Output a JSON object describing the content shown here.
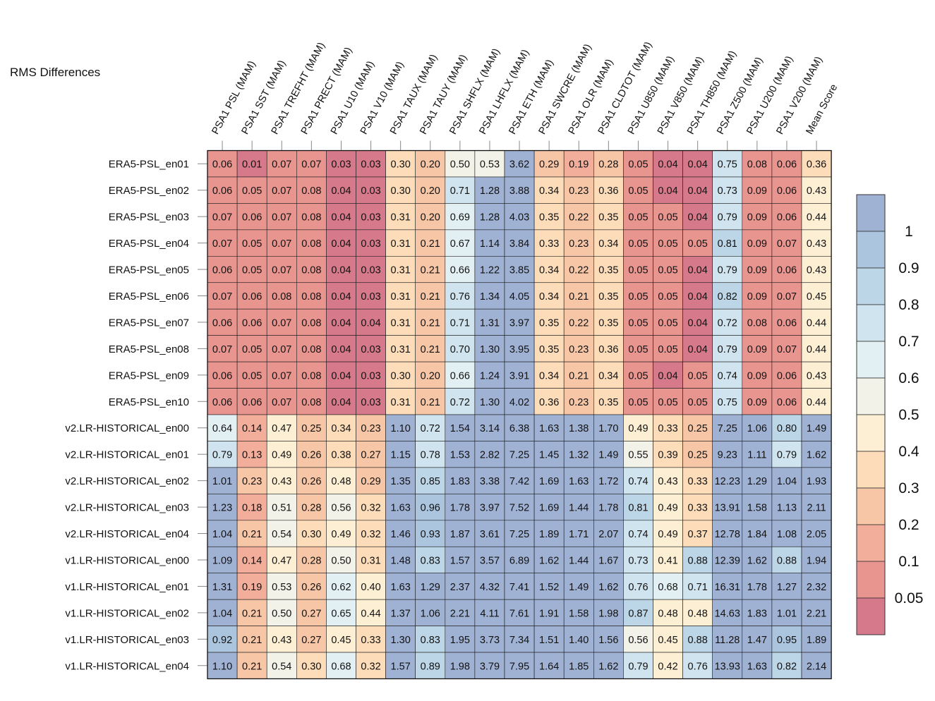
{
  "chart_data": {
    "type": "heatmap",
    "title": "RMS Differences",
    "columns": [
      "PSA1 PSL (MAM)",
      "PSA1 SST (MAM)",
      "PSA1 TREFHT (MAM)",
      "PSA1 PRECT (MAM)",
      "PSA1 U10 (MAM)",
      "PSA1 V10 (MAM)",
      "PSA1 TAUX (MAM)",
      "PSA1 TAUY (MAM)",
      "PSA1 SHFLX (MAM)",
      "PSA1 LHFLX (MAM)",
      "PSA1 ETH (MAM)",
      "PSA1 SWCRE (MAM)",
      "PSA1 OLR (MAM)",
      "PSA1 CLDTOT (MAM)",
      "PSA1 U850 (MAM)",
      "PSA1 V850 (MAM)",
      "PSA1 TH850 (MAM)",
      "PSA1 Z500 (MAM)",
      "PSA1 U200 (MAM)",
      "PSA1 V200 (MAM)",
      "Mean Score"
    ],
    "rows": [
      "ERA5-PSL_en01",
      "ERA5-PSL_en02",
      "ERA5-PSL_en03",
      "ERA5-PSL_en04",
      "ERA5-PSL_en05",
      "ERA5-PSL_en06",
      "ERA5-PSL_en07",
      "ERA5-PSL_en08",
      "ERA5-PSL_en09",
      "ERA5-PSL_en10",
      "v2.LR-HISTORICAL_en00",
      "v2.LR-HISTORICAL_en01",
      "v2.LR-HISTORICAL_en02",
      "v2.LR-HISTORICAL_en03",
      "v2.LR-HISTORICAL_en04",
      "v1.LR-HISTORICAL_en00",
      "v1.LR-HISTORICAL_en01",
      "v1.LR-HISTORICAL_en02",
      "v1.LR-HISTORICAL_en03",
      "v1.LR-HISTORICAL_en04"
    ],
    "values": [
      [
        "0.06",
        "0.01",
        "0.07",
        "0.07",
        "0.03",
        "0.03",
        "0.30",
        "0.20",
        "0.50",
        "0.53",
        "3.62",
        "0.29",
        "0.19",
        "0.28",
        "0.05",
        "0.04",
        "0.04",
        "0.75",
        "0.08",
        "0.06",
        "0.36"
      ],
      [
        "0.06",
        "0.05",
        "0.07",
        "0.08",
        "0.04",
        "0.03",
        "0.30",
        "0.20",
        "0.71",
        "1.28",
        "3.88",
        "0.34",
        "0.23",
        "0.36",
        "0.05",
        "0.04",
        "0.04",
        "0.73",
        "0.09",
        "0.06",
        "0.43"
      ],
      [
        "0.07",
        "0.06",
        "0.07",
        "0.08",
        "0.04",
        "0.03",
        "0.31",
        "0.20",
        "0.69",
        "1.28",
        "4.03",
        "0.35",
        "0.22",
        "0.35",
        "0.05",
        "0.05",
        "0.04",
        "0.79",
        "0.09",
        "0.06",
        "0.44"
      ],
      [
        "0.07",
        "0.05",
        "0.07",
        "0.08",
        "0.04",
        "0.03",
        "0.31",
        "0.21",
        "0.67",
        "1.14",
        "3.84",
        "0.33",
        "0.23",
        "0.34",
        "0.05",
        "0.05",
        "0.05",
        "0.81",
        "0.09",
        "0.07",
        "0.43"
      ],
      [
        "0.06",
        "0.05",
        "0.07",
        "0.08",
        "0.04",
        "0.03",
        "0.31",
        "0.21",
        "0.66",
        "1.22",
        "3.85",
        "0.34",
        "0.22",
        "0.35",
        "0.05",
        "0.05",
        "0.04",
        "0.79",
        "0.09",
        "0.06",
        "0.43"
      ],
      [
        "0.07",
        "0.06",
        "0.08",
        "0.08",
        "0.04",
        "0.03",
        "0.31",
        "0.21",
        "0.76",
        "1.34",
        "4.05",
        "0.34",
        "0.21",
        "0.35",
        "0.05",
        "0.05",
        "0.04",
        "0.82",
        "0.09",
        "0.07",
        "0.45"
      ],
      [
        "0.06",
        "0.06",
        "0.07",
        "0.08",
        "0.04",
        "0.04",
        "0.31",
        "0.21",
        "0.71",
        "1.31",
        "3.97",
        "0.35",
        "0.22",
        "0.35",
        "0.05",
        "0.05",
        "0.04",
        "0.72",
        "0.08",
        "0.06",
        "0.44"
      ],
      [
        "0.07",
        "0.05",
        "0.07",
        "0.08",
        "0.04",
        "0.03",
        "0.31",
        "0.21",
        "0.70",
        "1.30",
        "3.95",
        "0.35",
        "0.23",
        "0.36",
        "0.05",
        "0.05",
        "0.04",
        "0.79",
        "0.09",
        "0.07",
        "0.44"
      ],
      [
        "0.06",
        "0.05",
        "0.07",
        "0.08",
        "0.04",
        "0.03",
        "0.30",
        "0.20",
        "0.66",
        "1.24",
        "3.91",
        "0.34",
        "0.21",
        "0.34",
        "0.05",
        "0.04",
        "0.05",
        "0.74",
        "0.09",
        "0.06",
        "0.43"
      ],
      [
        "0.06",
        "0.06",
        "0.07",
        "0.08",
        "0.04",
        "0.03",
        "0.31",
        "0.21",
        "0.72",
        "1.30",
        "4.02",
        "0.36",
        "0.23",
        "0.35",
        "0.05",
        "0.05",
        "0.05",
        "0.75",
        "0.09",
        "0.06",
        "0.44"
      ],
      [
        "0.64",
        "0.14",
        "0.47",
        "0.25",
        "0.34",
        "0.23",
        "1.10",
        "0.72",
        "1.54",
        "3.14",
        "6.38",
        "1.63",
        "1.38",
        "1.70",
        "0.49",
        "0.33",
        "0.25",
        "7.25",
        "1.06",
        "0.80",
        "1.49"
      ],
      [
        "0.79",
        "0.13",
        "0.49",
        "0.26",
        "0.38",
        "0.27",
        "1.15",
        "0.78",
        "1.53",
        "2.82",
        "7.25",
        "1.45",
        "1.32",
        "1.49",
        "0.55",
        "0.39",
        "0.25",
        "9.23",
        "1.11",
        "0.79",
        "1.62"
      ],
      [
        "1.01",
        "0.23",
        "0.43",
        "0.26",
        "0.48",
        "0.29",
        "1.35",
        "0.85",
        "1.83",
        "3.38",
        "7.42",
        "1.69",
        "1.63",
        "1.72",
        "0.74",
        "0.43",
        "0.33",
        "12.23",
        "1.29",
        "1.04",
        "1.93"
      ],
      [
        "1.23",
        "0.18",
        "0.51",
        "0.28",
        "0.56",
        "0.32",
        "1.63",
        "0.96",
        "1.78",
        "3.97",
        "7.52",
        "1.69",
        "1.44",
        "1.78",
        "0.81",
        "0.49",
        "0.33",
        "13.91",
        "1.58",
        "1.13",
        "2.11"
      ],
      [
        "1.04",
        "0.21",
        "0.54",
        "0.30",
        "0.49",
        "0.32",
        "1.46",
        "0.93",
        "1.87",
        "3.61",
        "7.25",
        "1.89",
        "1.71",
        "2.07",
        "0.74",
        "0.49",
        "0.37",
        "12.78",
        "1.84",
        "1.08",
        "2.05"
      ],
      [
        "1.09",
        "0.14",
        "0.47",
        "0.28",
        "0.50",
        "0.31",
        "1.48",
        "0.83",
        "1.57",
        "3.57",
        "6.89",
        "1.62",
        "1.44",
        "1.67",
        "0.73",
        "0.41",
        "0.88",
        "12.39",
        "1.62",
        "0.88",
        "1.94"
      ],
      [
        "1.31",
        "0.19",
        "0.53",
        "0.26",
        "0.62",
        "0.40",
        "1.63",
        "1.29",
        "2.37",
        "4.32",
        "7.41",
        "1.52",
        "1.49",
        "1.62",
        "0.76",
        "0.68",
        "0.71",
        "16.31",
        "1.78",
        "1.27",
        "2.32"
      ],
      [
        "1.04",
        "0.21",
        "0.50",
        "0.27",
        "0.65",
        "0.44",
        "1.37",
        "1.06",
        "2.21",
        "4.11",
        "7.61",
        "1.91",
        "1.58",
        "1.98",
        "0.87",
        "0.48",
        "0.48",
        "14.63",
        "1.83",
        "1.01",
        "2.21"
      ],
      [
        "0.92",
        "0.21",
        "0.43",
        "0.27",
        "0.45",
        "0.33",
        "1.30",
        "0.83",
        "1.95",
        "3.73",
        "7.34",
        "1.51",
        "1.40",
        "1.56",
        "0.56",
        "0.45",
        "0.88",
        "11.28",
        "1.47",
        "0.95",
        "1.89"
      ],
      [
        "1.10",
        "0.21",
        "0.54",
        "0.30",
        "0.68",
        "0.32",
        "1.57",
        "0.89",
        "1.98",
        "3.79",
        "7.95",
        "1.64",
        "1.85",
        "1.62",
        "0.79",
        "0.42",
        "0.76",
        "13.93",
        "1.63",
        "0.82",
        "2.14"
      ]
    ],
    "colorbar": {
      "labels": [
        "1",
        "0.9",
        "0.8",
        "0.7",
        "0.6",
        "0.5",
        "0.4",
        "0.3",
        "0.2",
        "0.1",
        "0.05"
      ],
      "colors": [
        "#a0b2d4",
        "#abc5de",
        "#bcd6e7",
        "#cfe4ee",
        "#e3f0f3",
        "#f3f2e8",
        "#fdefd3",
        "#fcdcb9",
        "#f7c6a6",
        "#f2ae9a",
        "#e89590",
        "#d6798b"
      ],
      "thresholds": [
        1.0,
        0.9,
        0.8,
        0.7,
        0.6,
        0.5,
        0.4,
        0.3,
        0.2,
        0.1,
        0.05
      ]
    }
  }
}
